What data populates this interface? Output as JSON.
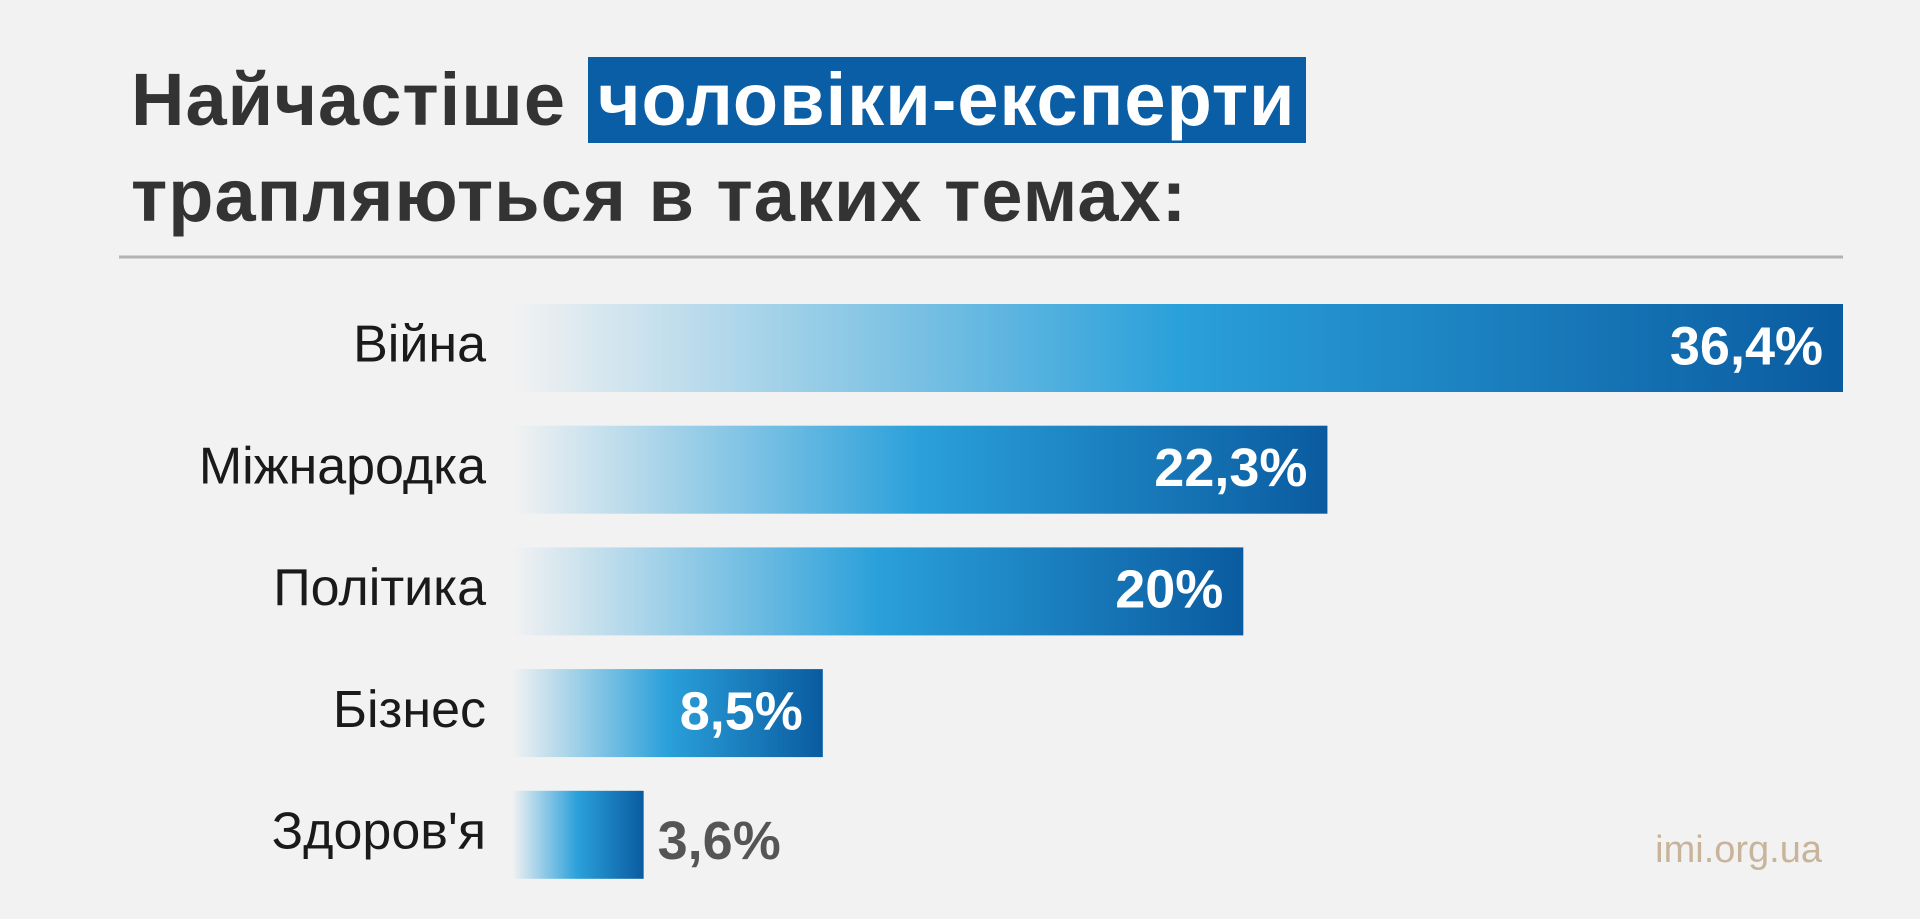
{
  "chart_data": {
    "type": "hbar",
    "title_parts": [
      "Найчастіше",
      "чоловіки-експерти",
      "трапляються в таких темах:"
    ],
    "categories": [
      "Війна",
      "Міжнародка",
      "Політика",
      "Бізнес",
      "Здоров'я"
    ],
    "values": [
      36.4,
      22.3,
      20,
      8.5,
      3.6
    ],
    "value_labels": [
      "36,4%",
      "22,3%",
      "20%",
      "8,5%",
      "3,6%"
    ],
    "xlim": [
      0,
      36.4
    ],
    "colors": [
      "#f2f2f2",
      "#2aa0da",
      "#0a5ba0"
    ],
    "highlight_color": "#0a5ea5",
    "source": "imi.org.ua"
  }
}
